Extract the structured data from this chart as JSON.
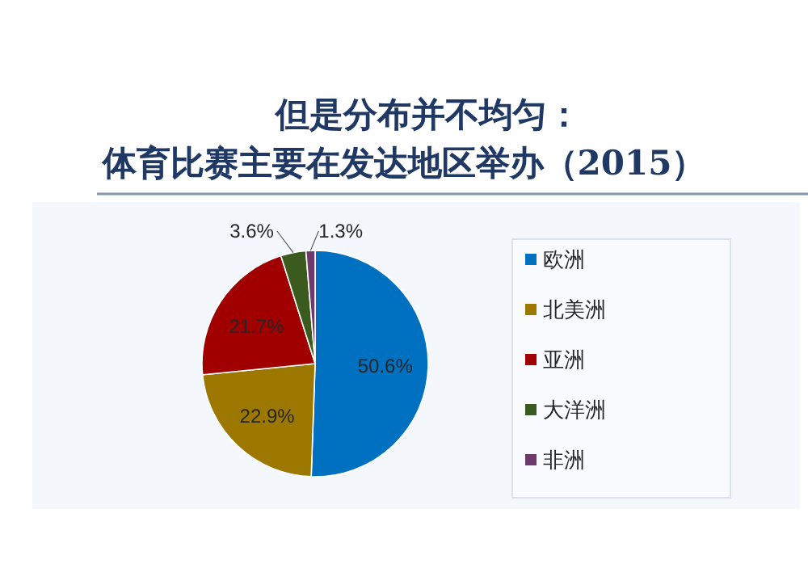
{
  "chart_data": {
    "type": "pie",
    "title": "但是分布并不均匀：",
    "subtitle": "体育比赛主要在发达地区举办（2015）",
    "categories": [
      "欧洲",
      "北美洲",
      "亚洲",
      "大洋洲",
      "非洲"
    ],
    "values": [
      50.6,
      22.9,
      21.7,
      3.6,
      1.3
    ],
    "colors": [
      "#0070c0",
      "#9c7800",
      "#a00000",
      "#3b5a1e",
      "#6e3a6e"
    ],
    "value_labels": [
      "50.6%",
      "22.9%",
      "21.7%",
      "3.6%",
      "1.3%"
    ],
    "legend": "right"
  }
}
